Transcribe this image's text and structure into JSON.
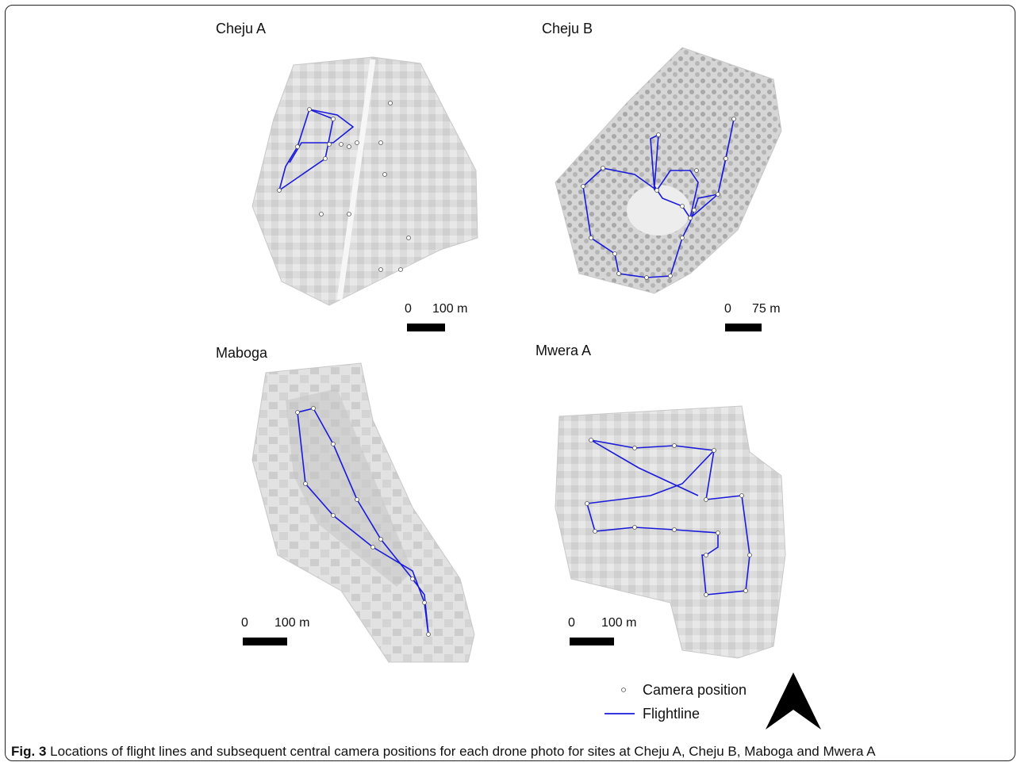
{
  "panels": [
    {
      "title": "Cheju A",
      "scale_zero": "0",
      "scale_label": "100 m"
    },
    {
      "title": "Cheju B",
      "scale_zero": "0",
      "scale_label": "75 m"
    },
    {
      "title": "Maboga",
      "scale_zero": "0",
      "scale_label": "100 m"
    },
    {
      "title": "Mwera A",
      "scale_zero": "0",
      "scale_label": "100 m"
    }
  ],
  "legend": {
    "camera_label": "Camera position",
    "flightline_label": "Flightline"
  },
  "caption": {
    "label": "Fig. 3",
    "text": " Locations of flight lines and subsequent central camera positions for each drone photo for sites at Cheju A, Cheju B, Maboga and Mwera A"
  },
  "colors": {
    "flightline": "#1a1adb",
    "camera": "#ffffff",
    "imagery_light": "#e4e4e4",
    "imagery_dark": "#b4b4b4"
  }
}
